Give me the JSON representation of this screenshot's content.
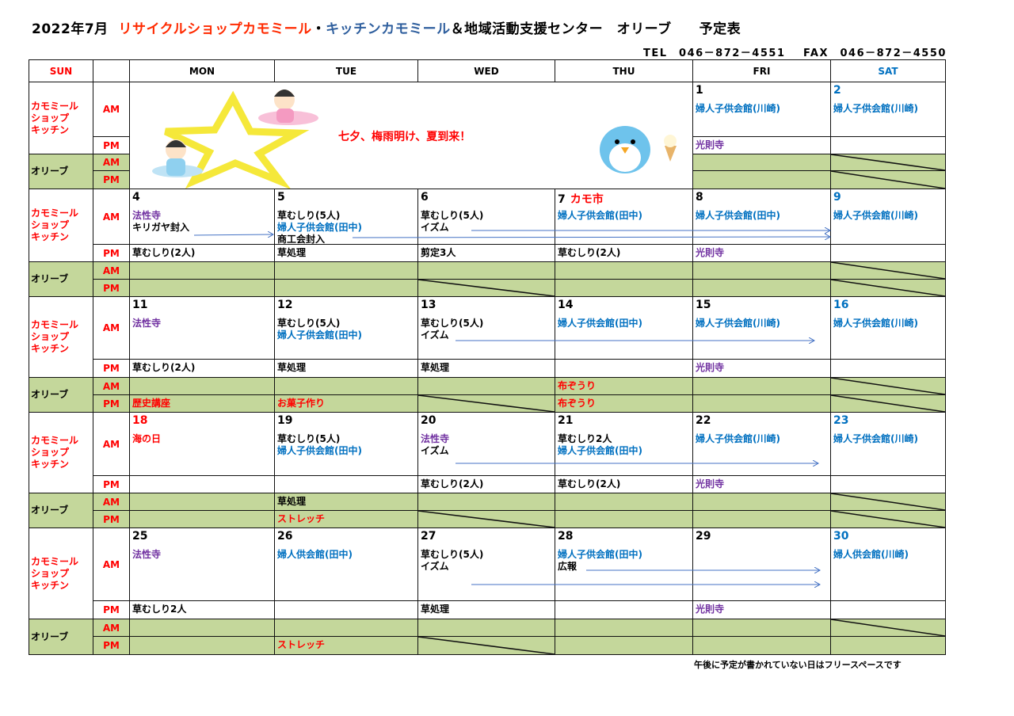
{
  "header": {
    "title_date": "2022年7月",
    "title_shop": "リサイクルショップカモミール",
    "title_dot": "・",
    "title_kitchen": "キッチンカモミール",
    "title_rest": "＆地域活動支援センター　オリーブ　　予定表",
    "tel": "TEL　046－872－4551",
    "fax": "FAX　046－872－4550"
  },
  "colors": {
    "red": "#ff0000",
    "blue": "#0070c0",
    "purple": "#7030a0",
    "black": "#000000",
    "green": "#c4d79b",
    "sat": "#0070c0"
  },
  "columns": [
    "SUN",
    "",
    "MON",
    "TUE",
    "WED",
    "THU",
    "FRI",
    "SAT"
  ],
  "row_labels": {
    "shop": "カモミール\nショップ\nキッチン",
    "olive": "オリーブ",
    "am": "AM",
    "pm": "PM"
  },
  "banner": {
    "text": "七夕、梅雨明け、夏到来！",
    "icons": [
      "star-icon",
      "orihime-icon",
      "hikoboshi-icon",
      "penguin-icon"
    ]
  },
  "weeks": [
    {
      "days": [
        null,
        null,
        null,
        null,
        {
          "date": "1",
          "am": [
            [
              "婦人子供会館(川崎)",
              "blue"
            ]
          ],
          "pm": [
            [
              "光則寺",
              "purple"
            ]
          ]
        },
        {
          "date": "2",
          "date_color": "sat",
          "am": [
            [
              "婦人子供会館(川崎)",
              "blue"
            ]
          ],
          "pm": []
        }
      ]
    },
    {
      "days": [
        {
          "date": "4",
          "am": [
            [
              "法性寺",
              "purple"
            ],
            [
              "キリガヤ封入",
              "black"
            ]
          ],
          "pm": [
            [
              "草むしり(2人)",
              "black"
            ]
          ]
        },
        {
          "date": "5",
          "am": [
            [
              "草むしり(5人)",
              "black"
            ],
            [
              "婦人子供会館(田中)",
              "blue"
            ],
            [
              "商工会封入",
              "black"
            ]
          ],
          "pm": [
            [
              "草処理",
              "black"
            ]
          ]
        },
        {
          "date": "6",
          "am": [
            [
              "草むしり(5人)",
              "black"
            ],
            [
              "イズム",
              "black"
            ]
          ],
          "pm": [
            [
              "剪定3人",
              "black"
            ]
          ]
        },
        {
          "date": "7",
          "date_note": "カモ市",
          "am": [
            [
              "婦人子供会館(田中)",
              "blue"
            ]
          ],
          "pm": [
            [
              "草むしり(2人)",
              "black"
            ]
          ]
        },
        {
          "date": "8",
          "am": [
            [
              "婦人子供会館(田中)",
              "blue"
            ]
          ],
          "pm": [
            [
              "光則寺",
              "purple"
            ]
          ]
        },
        {
          "date": "9",
          "date_color": "sat",
          "am": [
            [
              "婦人子供会館(川崎)",
              "blue"
            ]
          ],
          "pm": []
        }
      ]
    },
    {
      "days": [
        {
          "date": "11",
          "am": [
            [
              "法性寺",
              "purple"
            ]
          ],
          "pm": [
            [
              "草むしり(2人)",
              "black"
            ]
          ],
          "oam": [],
          "opm": [
            [
              "歴史講座",
              "red"
            ]
          ]
        },
        {
          "date": "12",
          "am": [
            [
              "草むしり(5人)",
              "black"
            ],
            [
              "婦人子供会館(田中)",
              "blue"
            ]
          ],
          "pm": [
            [
              "草処理",
              "black"
            ]
          ],
          "opm": [
            [
              "お菓子作り",
              "red"
            ]
          ]
        },
        {
          "date": "13",
          "am": [
            [
              "草むしり(5人)",
              "black"
            ],
            [
              "イズム",
              "black"
            ]
          ],
          "pm": [
            [
              "草処理",
              "black"
            ]
          ]
        },
        {
          "date": "14",
          "am": [
            [
              "婦人子供会館(田中)",
              "blue"
            ]
          ],
          "pm": [],
          "oam": [
            [
              "布ぞうり",
              "red"
            ]
          ],
          "opm": [
            [
              "布ぞうり",
              "red"
            ]
          ]
        },
        {
          "date": "15",
          "am": [
            [
              "婦人子供会館(川崎)",
              "blue"
            ]
          ],
          "pm": [
            [
              "光則寺",
              "purple"
            ]
          ]
        },
        {
          "date": "16",
          "date_color": "sat",
          "am": [
            [
              "婦人子供会館(川崎)",
              "blue"
            ]
          ],
          "pm": []
        }
      ]
    },
    {
      "days": [
        {
          "date": "18",
          "date_color": "red",
          "am": [
            [
              "海の日",
              "red"
            ]
          ],
          "pm": []
        },
        {
          "date": "19",
          "am": [
            [
              "草むしり(5人)",
              "black"
            ],
            [
              "婦人子供会館(田中)",
              "blue"
            ]
          ],
          "pm": [],
          "oam": [
            [
              "草処理",
              "black"
            ]
          ],
          "opm": [
            [
              "ストレッチ",
              "red"
            ]
          ]
        },
        {
          "date": "20",
          "am": [
            [
              "法性寺",
              "purple"
            ],
            [
              "イズム",
              "black"
            ]
          ],
          "pm": [
            [
              "草むしり(2人)",
              "black"
            ]
          ]
        },
        {
          "date": "21",
          "am": [
            [
              "草むしり2人",
              "black"
            ],
            [
              "婦人子供会館(田中)",
              "blue"
            ]
          ],
          "pm": [
            [
              "草むしり(2人)",
              "black"
            ]
          ]
        },
        {
          "date": "22",
          "am": [
            [
              "婦人子供会館(川崎)",
              "blue"
            ]
          ],
          "pm": [
            [
              "光則寺",
              "purple"
            ]
          ]
        },
        {
          "date": "23",
          "date_color": "sat",
          "am": [
            [
              "婦人子供会館(川崎)",
              "blue"
            ]
          ],
          "pm": []
        }
      ]
    },
    {
      "days": [
        {
          "date": "25",
          "am": [
            [
              "法性寺",
              "purple"
            ]
          ],
          "pm": [
            [
              "草むしり2人",
              "black"
            ]
          ]
        },
        {
          "date": "26",
          "am": [
            [
              "婦人供会館(田中)",
              "blue"
            ]
          ],
          "pm": [],
          "opm": [
            [
              "ストレッチ",
              "red"
            ]
          ]
        },
        {
          "date": "27",
          "am": [
            [
              "草むしり(5人)",
              "black"
            ],
            [
              "イズム",
              "black"
            ]
          ],
          "pm": [
            [
              "草処理",
              "black"
            ]
          ]
        },
        {
          "date": "28",
          "am": [
            [
              "婦人子供会館(田中)",
              "blue"
            ],
            [
              "広報",
              "black"
            ]
          ],
          "pm": []
        },
        {
          "date": "29",
          "am": [],
          "pm": [
            [
              "光則寺",
              "purple"
            ]
          ]
        },
        {
          "date": "30",
          "date_color": "sat",
          "am": [
            [
              "婦人供会館(川崎)",
              "blue"
            ]
          ],
          "pm": []
        }
      ]
    }
  ],
  "footer_note": "午後に予定が書かれていない日はフリースペースです"
}
